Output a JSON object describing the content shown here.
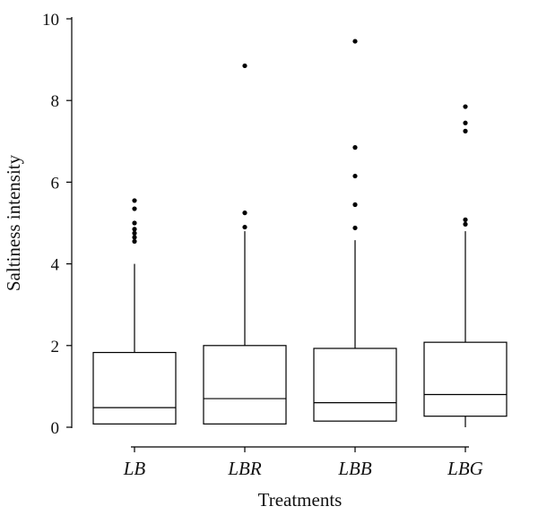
{
  "chart_data": {
    "type": "box",
    "xlabel": "Treatments",
    "ylabel": "Saltiness intensity",
    "ylim": [
      0,
      10
    ],
    "yticks": [
      0,
      2,
      4,
      6,
      8,
      10
    ],
    "categories": [
      "LB",
      "LBR",
      "LBB",
      "LBG"
    ],
    "boxes": [
      {
        "category": "LB",
        "whisker_low": 0.08,
        "q1": 0.08,
        "median": 0.48,
        "q3": 1.83,
        "whisker_high": 4.0,
        "outliers": [
          4.55,
          4.65,
          4.75,
          4.85,
          5.0,
          5.35,
          5.55
        ]
      },
      {
        "category": "LBR",
        "whisker_low": 0.08,
        "q1": 0.08,
        "median": 0.7,
        "q3": 2.0,
        "whisker_high": 4.8,
        "outliers": [
          4.9,
          5.25,
          8.85
        ]
      },
      {
        "category": "LBB",
        "whisker_low": 0.15,
        "q1": 0.15,
        "median": 0.6,
        "q3": 1.93,
        "whisker_high": 4.58,
        "outliers": [
          4.88,
          5.45,
          6.15,
          6.85,
          9.45
        ]
      },
      {
        "category": "LBG",
        "whisker_low": 0.0,
        "q1": 0.27,
        "median": 0.8,
        "q3": 2.08,
        "whisker_high": 4.8,
        "outliers": [
          4.97,
          5.08,
          7.25,
          7.45,
          7.85
        ]
      }
    ],
    "grid": false,
    "legend": "none"
  }
}
